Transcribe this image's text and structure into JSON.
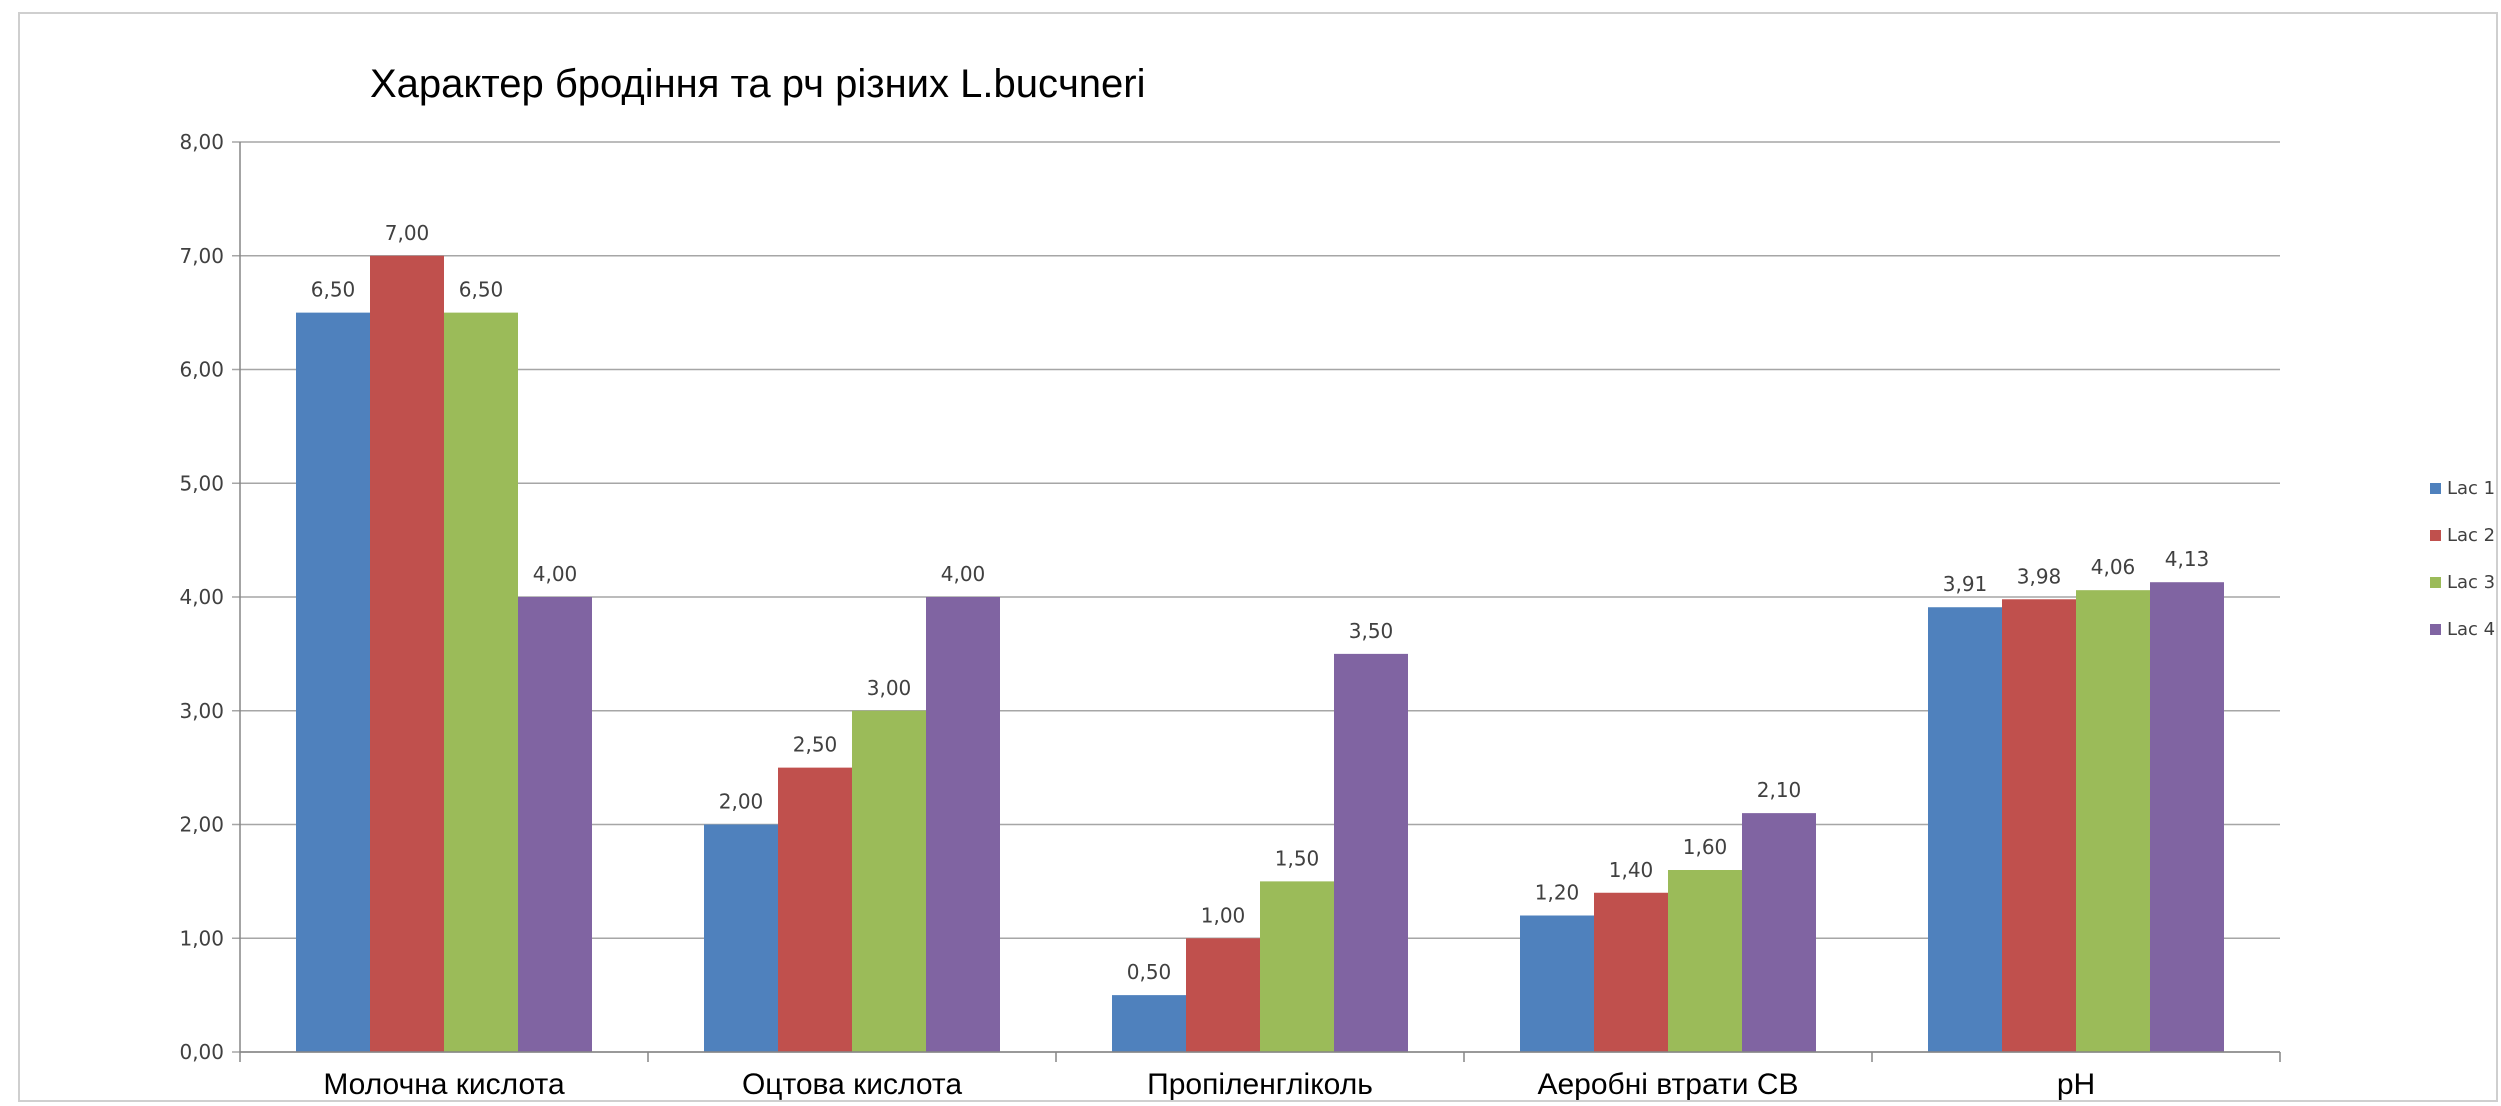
{
  "chart_data": {
    "type": "bar",
    "title": "Характер бродіння та рч різних L.bucчneri",
    "categories": [
      "Молочна кислота",
      "Оцтова кислота",
      "Пропіленгліколь",
      "Аеробні втрати СВ",
      "pH"
    ],
    "series": [
      {
        "name": "Lac 1",
        "color": "#4f81bd",
        "values": [
          6.5,
          2.0,
          0.5,
          1.2,
          3.91
        ],
        "labels": [
          "6,50",
          "2,00",
          "0,50",
          "1,20",
          "3,91"
        ]
      },
      {
        "name": "Lac 2",
        "color": "#c0504d",
        "values": [
          7.0,
          2.5,
          1.0,
          1.4,
          3.98
        ],
        "labels": [
          "7,00",
          "2,50",
          "1,00",
          "1,40",
          "3,98"
        ]
      },
      {
        "name": "Lac 3",
        "color": "#9bbb59",
        "values": [
          6.5,
          3.0,
          1.5,
          1.6,
          4.06
        ],
        "labels": [
          "6,50",
          "3,00",
          "1,50",
          "1,60",
          "4,06"
        ]
      },
      {
        "name": "Lac 4",
        "color": "#8064a2",
        "values": [
          4.0,
          4.0,
          3.5,
          2.1,
          4.13
        ],
        "labels": [
          "4,00",
          "4,00",
          "3,50",
          "2,10",
          "4,13"
        ]
      }
    ],
    "ylim": [
      0,
      8
    ],
    "yticks": [
      "0,00",
      "1,00",
      "2,00",
      "3,00",
      "4,00",
      "5,00",
      "6,00",
      "7,00",
      "8,00"
    ],
    "grid": true,
    "legend": "right",
    "xlabel": "",
    "ylabel": ""
  }
}
